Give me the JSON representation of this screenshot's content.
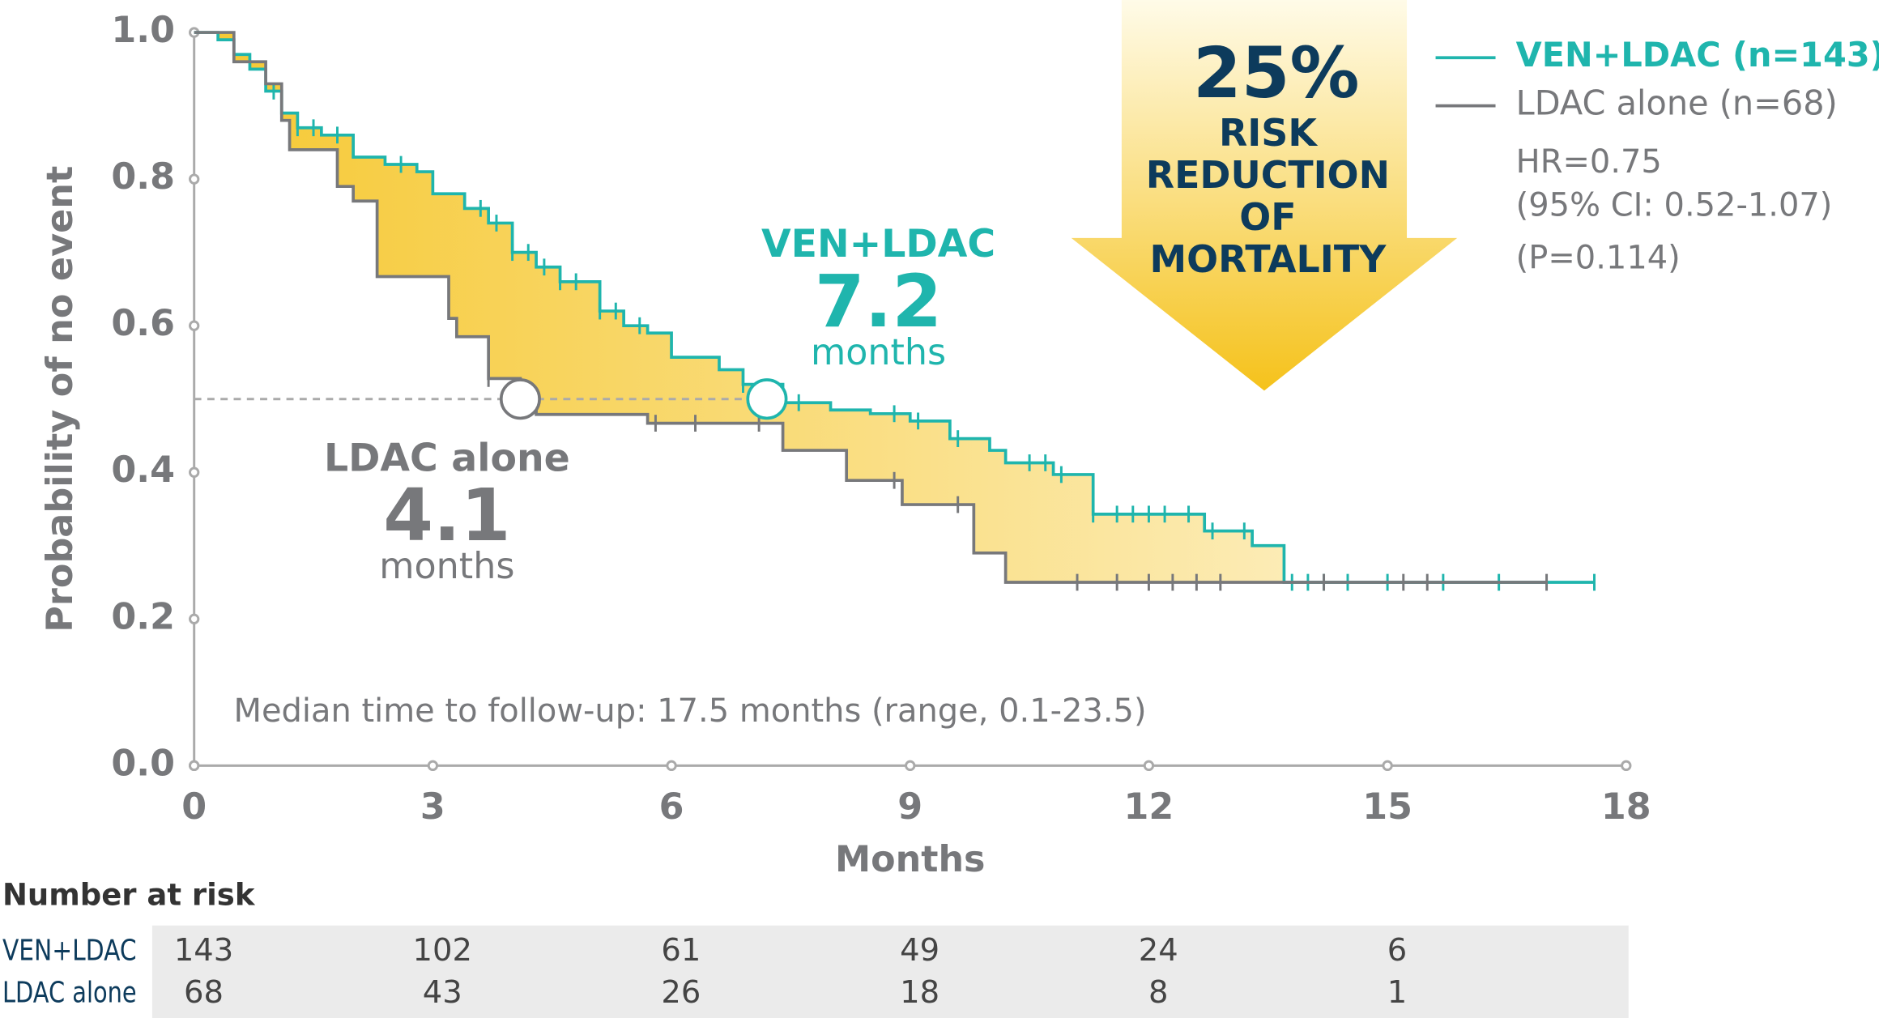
{
  "chart_data": {
    "type": "km",
    "ylabel": "Probability of no event",
    "xlabel": "Months",
    "xlim": [
      0,
      18
    ],
    "ylim": [
      0,
      1
    ],
    "xticks": [
      0,
      3,
      6,
      9,
      12,
      15,
      18
    ],
    "yticks": [
      {
        "value": 0,
        "label": "0.0"
      },
      0.2,
      0.4,
      0.6,
      0.8,
      {
        "value": 1,
        "label": "1.0"
      }
    ],
    "series": [
      {
        "name": "VEN+LDAC (n=143)",
        "color": "#1fb5ad",
        "x": [
          0,
          0.3,
          0.5,
          0.7,
          0.9,
          1.1,
          1.3,
          1.6,
          2.0,
          2.4,
          2.8,
          3.0,
          3.4,
          3.7,
          4.0,
          4.3,
          4.6,
          5.1,
          5.4,
          5.7,
          6.0,
          6.6,
          6.9,
          7.4,
          8.0,
          8.5,
          9.0,
          9.5,
          10.0,
          10.2,
          10.8,
          11.3,
          12.7,
          13.3,
          13.7,
          17.6
        ],
        "values": [
          1.0,
          0.99,
          0.97,
          0.95,
          0.92,
          0.89,
          0.87,
          0.86,
          0.83,
          0.82,
          0.81,
          0.78,
          0.76,
          0.74,
          0.7,
          0.68,
          0.66,
          0.62,
          0.6,
          0.59,
          0.557,
          0.54,
          0.52,
          0.495,
          0.485,
          0.48,
          0.47,
          0.446,
          0.43,
          0.413,
          0.397,
          0.343,
          0.32,
          0.3,
          0.25,
          0.25
        ],
        "censored_x": [
          1.0,
          1.3,
          1.5,
          1.8,
          2.6,
          3.6,
          3.8,
          4.0,
          4.2,
          4.4,
          4.6,
          4.8,
          5.1,
          5.3,
          5.6,
          6.9,
          7.6,
          8.8,
          9.1,
          9.6,
          10.5,
          10.7,
          10.9,
          11.3,
          11.6,
          11.8,
          12.0,
          12.2,
          12.5,
          12.8,
          13.2,
          13.8,
          14.0,
          14.2,
          14.5,
          15.0,
          15.7,
          16.4,
          17.6
        ]
      },
      {
        "name": "LDAC alone (n=68)",
        "color": "#77787b",
        "x": [
          0,
          0.5,
          0.9,
          1.1,
          1.2,
          1.8,
          2.0,
          2.3,
          3.2,
          3.3,
          3.7,
          4.1,
          4.3,
          5.7,
          7.4,
          8.2,
          8.9,
          9.8,
          10.2,
          17.0
        ],
        "values": [
          1.0,
          0.96,
          0.93,
          0.88,
          0.84,
          0.79,
          0.77,
          0.667,
          0.61,
          0.585,
          0.528,
          0.503,
          0.479,
          0.467,
          0.43,
          0.389,
          0.356,
          0.29,
          0.25,
          0.25
        ],
        "censored_x": [
          3.7,
          5.8,
          6.3,
          7.1,
          8.8,
          9.6,
          11.1,
          11.6,
          12.0,
          12.3,
          12.6,
          12.9,
          14.2,
          15.2,
          15.5,
          17.0
        ]
      }
    ],
    "medians": [
      {
        "name": "VEN+LDAC",
        "value": 7.2,
        "unit": "months"
      },
      {
        "name": "LDAC alone",
        "value": 4.1,
        "unit": "months"
      }
    ],
    "median_level": 0.5,
    "risk_reduction": {
      "label": "25%",
      "lines": [
        "RISK",
        "REDUCTION",
        "OF",
        "MORTALITY"
      ]
    },
    "stats": [
      "HR=0.75",
      "(95% CI: 0.52-1.07)",
      "(P=0.114)"
    ],
    "footnote": "Median time to follow-up: 17.5 months (range, 0.1-23.5)",
    "risk_table": {
      "title": "Number at risk",
      "rows": [
        {
          "label": "VEN+LDAC",
          "values": [
            143,
            102,
            61,
            49,
            24,
            6
          ]
        },
        {
          "label": "LDAC alone",
          "values": [
            68,
            43,
            26,
            18,
            8,
            1
          ]
        }
      ]
    }
  }
}
